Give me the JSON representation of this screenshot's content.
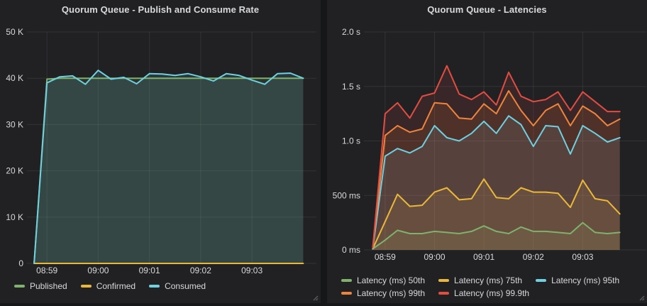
{
  "app": {
    "background": "#161719",
    "panel_background": "#212124",
    "grid_color": "rgba(255,255,255,0.08)",
    "text_color": "#d8d9da"
  },
  "chart_data": [
    {
      "type": "line",
      "title": "Quorum Queue - Publish and Consume Rate",
      "xlabel": "",
      "ylabel": "",
      "ylim": [
        0,
        50000
      ],
      "grid": true,
      "legend_position": "bottom",
      "y_ticks": [
        {
          "value": 0,
          "label": "0"
        },
        {
          "value": 10000,
          "label": "10 K"
        },
        {
          "value": 20000,
          "label": "20 K"
        },
        {
          "value": 30000,
          "label": "30 K"
        },
        {
          "value": 40000,
          "label": "40 K"
        },
        {
          "value": 50000,
          "label": "50 K"
        }
      ],
      "x_tick_labels": [
        "08:59",
        "09:00",
        "09:01",
        "09:02",
        "09:03"
      ],
      "x_tick_indices": [
        1,
        5,
        9,
        13,
        17
      ],
      "x": [
        "08:58:45",
        "08:59:00",
        "08:59:15",
        "08:59:30",
        "08:59:45",
        "09:00:00",
        "09:00:15",
        "09:00:30",
        "09:00:45",
        "09:01:00",
        "09:01:15",
        "09:01:30",
        "09:01:45",
        "09:02:00",
        "09:02:15",
        "09:02:30",
        "09:02:45",
        "09:03:00",
        "09:03:15",
        "09:03:30",
        "09:03:45",
        "09:04:00"
      ],
      "series": [
        {
          "name": "Published",
          "color": "#7EB26D",
          "values": [
            0,
            39800,
            40000,
            40000,
            40000,
            40000,
            40000,
            40000,
            40000,
            40000,
            40000,
            40000,
            40000,
            40000,
            40000,
            40000,
            40000,
            40000,
            40000,
            40000,
            40000,
            40000
          ]
        },
        {
          "name": "Confirmed",
          "color": "#EAB839",
          "values": [
            0,
            0,
            0,
            0,
            0,
            0,
            0,
            0,
            0,
            0,
            0,
            0,
            0,
            0,
            0,
            0,
            0,
            0,
            0,
            0,
            0,
            0
          ]
        },
        {
          "name": "Consumed",
          "color": "#6ED0E0",
          "values": [
            0,
            39000,
            40300,
            40500,
            38700,
            41700,
            39800,
            40200,
            38800,
            41000,
            40900,
            40600,
            41000,
            40300,
            39400,
            41000,
            40600,
            39600,
            38700,
            41000,
            41100,
            40000
          ]
        }
      ],
      "legend_rows": [
        [
          {
            "label": "Published",
            "color": "#7EB26D"
          },
          {
            "label": "Confirmed",
            "color": "#EAB839"
          },
          {
            "label": "Consumed",
            "color": "#6ED0E0"
          }
        ]
      ]
    },
    {
      "type": "line",
      "title": "Quorum Queue - Latencies",
      "xlabel": "",
      "ylabel": "",
      "ylim": [
        0,
        2.0
      ],
      "grid": true,
      "legend_position": "bottom",
      "y_ticks": [
        {
          "value": 0,
          "label": "0 ms"
        },
        {
          "value": 0.5,
          "label": "500 ms"
        },
        {
          "value": 1.0,
          "label": "1.0 s"
        },
        {
          "value": 1.5,
          "label": "1.5 s"
        },
        {
          "value": 2.0,
          "label": "2.0 s"
        }
      ],
      "x_tick_labels": [
        "08:59",
        "09:00",
        "09:01",
        "09:02",
        "09:03"
      ],
      "x_tick_indices": [
        1,
        5,
        9,
        13,
        17
      ],
      "x": [
        "08:58:45",
        "08:59:00",
        "08:59:15",
        "08:59:30",
        "08:59:45",
        "09:00:00",
        "09:00:15",
        "09:00:30",
        "09:00:45",
        "09:01:00",
        "09:01:15",
        "09:01:30",
        "09:01:45",
        "09:02:00",
        "09:02:15",
        "09:02:30",
        "09:02:45",
        "09:03:00",
        "09:03:15",
        "09:03:30",
        "09:03:45"
      ],
      "series": [
        {
          "name": "Latency (ms) 50th",
          "color": "#7EB26D",
          "values": [
            0.01,
            0.09,
            0.18,
            0.15,
            0.15,
            0.17,
            0.16,
            0.15,
            0.17,
            0.22,
            0.17,
            0.15,
            0.21,
            0.17,
            0.17,
            0.16,
            0.15,
            0.25,
            0.16,
            0.15,
            0.16
          ]
        },
        {
          "name": "Latency (ms) 75th",
          "color": "#EAB839",
          "values": [
            0.01,
            0.26,
            0.51,
            0.4,
            0.41,
            0.53,
            0.57,
            0.46,
            0.47,
            0.65,
            0.48,
            0.47,
            0.57,
            0.53,
            0.53,
            0.52,
            0.39,
            0.64,
            0.47,
            0.45,
            0.33
          ]
        },
        {
          "name": "Latency (ms) 95th",
          "color": "#6ED0E0",
          "values": [
            0.01,
            0.86,
            0.93,
            0.89,
            0.95,
            1.14,
            1.03,
            1.0,
            1.07,
            1.18,
            1.07,
            1.23,
            1.15,
            0.95,
            1.14,
            1.13,
            0.88,
            1.14,
            1.07,
            0.99,
            1.03
          ]
        },
        {
          "name": "Latency (ms) 99th",
          "color": "#EF843C",
          "values": [
            0.02,
            1.05,
            1.14,
            1.08,
            1.11,
            1.35,
            1.34,
            1.21,
            1.2,
            1.34,
            1.25,
            1.46,
            1.28,
            1.14,
            1.28,
            1.34,
            1.14,
            1.32,
            1.25,
            1.14,
            1.2
          ]
        },
        {
          "name": "Latency (ms) 99.9th",
          "color": "#E24D42",
          "values": [
            0.02,
            1.25,
            1.35,
            1.21,
            1.41,
            1.44,
            1.69,
            1.43,
            1.38,
            1.45,
            1.33,
            1.63,
            1.41,
            1.36,
            1.38,
            1.45,
            1.28,
            1.45,
            1.36,
            1.27,
            1.27
          ]
        }
      ],
      "legend_rows": [
        [
          {
            "label": "Latency (ms) 50th",
            "color": "#7EB26D"
          },
          {
            "label": "Latency (ms) 75th",
            "color": "#EAB839"
          },
          {
            "label": "Latency (ms) 95th",
            "color": "#6ED0E0"
          }
        ],
        [
          {
            "label": "Latency (ms) 99th",
            "color": "#EF843C"
          },
          {
            "label": "Latency (ms) 99.9th",
            "color": "#E24D42"
          }
        ]
      ]
    }
  ]
}
